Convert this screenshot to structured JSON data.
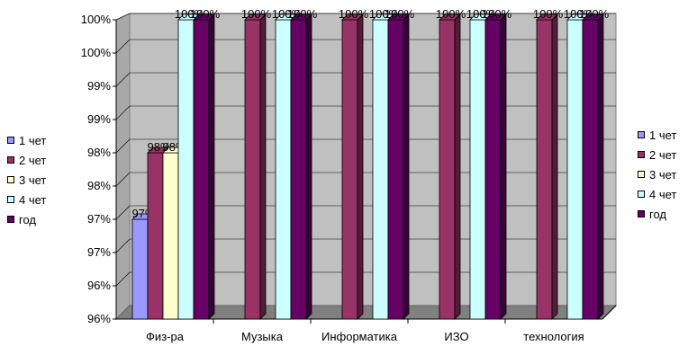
{
  "chart_data": {
    "type": "bar",
    "categories": [
      "Физ-ра",
      "Музыка",
      "Информатика",
      "ИЗО",
      "технология"
    ],
    "series": [
      {
        "name": "1 чет",
        "color": "#9999FF",
        "values": [
          0.97,
          null,
          null,
          null,
          null
        ],
        "labels": [
          "97%",
          "",
          "",
          "",
          ""
        ]
      },
      {
        "name": "2 чет",
        "color": "#993366",
        "values": [
          0.98,
          1.0,
          1.0,
          1.0,
          1.0
        ],
        "labels": [
          "98%",
          "100%",
          "100%",
          "100%",
          "100%"
        ]
      },
      {
        "name": "3 чет",
        "color": "#FFFFCC",
        "values": [
          0.98,
          null,
          null,
          null,
          null
        ],
        "labels": [
          "98%",
          "",
          "",
          "",
          ""
        ]
      },
      {
        "name": "4 чет",
        "color": "#CCFFFF",
        "values": [
          1.0,
          1.0,
          1.0,
          1.0,
          1.0
        ],
        "labels": [
          "100%",
          "100%",
          "100%",
          "100%",
          "100%"
        ]
      },
      {
        "name": "год",
        "color": "#660066",
        "values": [
          1.0,
          1.0,
          1.0,
          1.0,
          1.0
        ],
        "labels": [
          "100%",
          "100%",
          "100%",
          "100%",
          "100%"
        ]
      }
    ],
    "yticks": [
      "96%",
      "96%",
      "97%",
      "97%",
      "98%",
      "98%",
      "99%",
      "99%",
      "100%",
      "100%"
    ],
    "ylim": [
      0.955,
      1.0
    ],
    "grid": true,
    "legend": [
      "left",
      "right"
    ]
  }
}
